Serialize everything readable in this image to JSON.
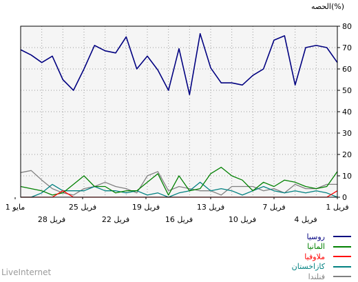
{
  "unit_label": "الحصه(%)",
  "brand": "LiveInternet",
  "chart_data": {
    "type": "line",
    "ylim": [
      0,
      80
    ],
    "y_ticks": [
      0,
      10,
      20,
      30,
      40,
      50,
      60,
      70,
      80
    ],
    "grid": true,
    "x_labels_upper": [
      "1 مايو",
      "25 فريل",
      "19 فريل",
      "13 فريل",
      "7 فريل",
      "1 فريل"
    ],
    "x_labels_lower": [
      "28 فريل",
      "22 فريل",
      "16 فريل",
      "10 فريل",
      "4 فريل"
    ],
    "series": [
      {
        "name": "روسيا",
        "color": "#000080",
        "values": [
          69,
          66.5,
          63,
          66,
          55,
          50,
          60,
          71,
          68.5,
          67.5,
          75,
          60,
          66,
          59.5,
          50,
          69.5,
          48,
          76.5,
          60.5,
          53.5,
          53.5,
          52.5,
          57,
          60,
          73.5,
          75.5,
          52.5,
          70,
          71,
          70,
          63
        ]
      },
      {
        "name": "المانيا",
        "color": "#008000",
        "values": [
          5,
          4,
          3,
          1,
          2,
          6,
          10,
          5,
          5,
          2,
          3,
          3,
          7,
          11,
          1,
          10,
          3,
          4,
          11,
          14,
          10,
          8,
          3,
          7,
          5,
          8,
          7,
          5,
          4,
          5,
          12
        ]
      },
      {
        "name": "ملاوفيا",
        "color": "#ff0000",
        "values": [
          0,
          0,
          0,
          0,
          3,
          0,
          0,
          0,
          0,
          0,
          0,
          0,
          0,
          0,
          0,
          0,
          0,
          0,
          0,
          0,
          0,
          0,
          0,
          0,
          0,
          0,
          0,
          0,
          0,
          0,
          3
        ]
      },
      {
        "name": "كازاخستان",
        "color": "#008080",
        "values": [
          0,
          0,
          2,
          6,
          3,
          3,
          3,
          5,
          3,
          3,
          2,
          3,
          1,
          2,
          0,
          2,
          3,
          7,
          3,
          4,
          3,
          1,
          3,
          5,
          3,
          2,
          3,
          2,
          3,
          2,
          0
        ]
      },
      {
        "name": "فنلندا",
        "color": "#808080",
        "values": [
          11.5,
          12.5,
          8,
          4,
          2,
          1,
          4,
          5,
          7,
          5,
          4,
          2,
          10,
          12,
          3,
          5,
          4,
          3,
          3,
          1,
          5,
          5,
          5,
          3,
          4,
          2,
          6,
          4,
          4,
          6,
          6
        ]
      }
    ]
  }
}
